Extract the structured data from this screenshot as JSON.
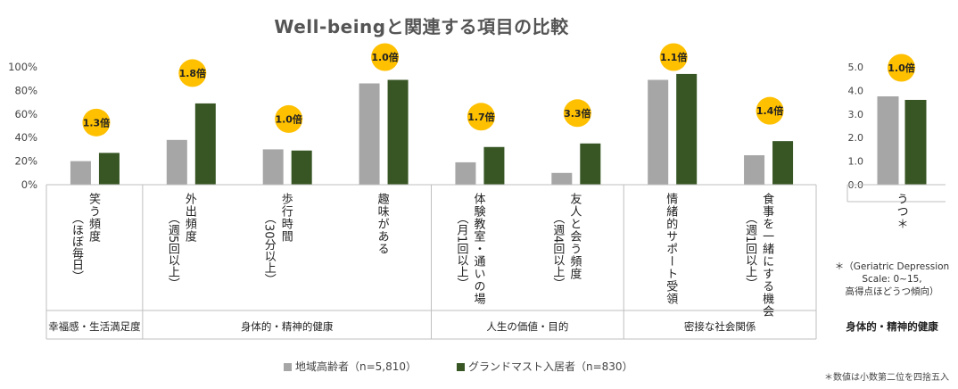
{
  "chart_data": [
    {
      "type": "bar",
      "title": "Well-beingと関連する項目の比較",
      "yticks": [
        "0%",
        "20%",
        "40%",
        "60%",
        "80%",
        "100%"
      ],
      "ylim": [
        0,
        100
      ],
      "series": [
        {
          "name": "地域高齢者（n=5,810）",
          "color": "#a6a6a6"
        },
        {
          "name": "グランドマスト入居者（n=830）",
          "color": "#375623"
        }
      ],
      "categories": [
        {
          "label": "笑う頻度",
          "sub": "（ほぼ毎日）",
          "values": [
            20,
            27
          ],
          "ratio": "1.3倍"
        },
        {
          "label": "外出頻度",
          "sub": "（週5回以上）",
          "values": [
            38,
            69
          ],
          "ratio": "1.8倍"
        },
        {
          "label": "歩行時間",
          "sub": "（30分以上）",
          "values": [
            30,
            29
          ],
          "ratio": "1.0倍"
        },
        {
          "label": "趣味がある",
          "sub": "",
          "values": [
            86,
            89
          ],
          "ratio": "1.0倍"
        },
        {
          "label": "体験教室・通いの場",
          "sub": "（月1回以上）",
          "values": [
            19,
            32
          ],
          "ratio": "1.7倍"
        },
        {
          "label": "友人と会う頻度",
          "sub": "（週4回以上）",
          "values": [
            10,
            35
          ],
          "ratio": "3.3倍"
        },
        {
          "label": "情緒的サポート受領",
          "sub": "",
          "values": [
            89,
            94
          ],
          "ratio": "1.1倍"
        },
        {
          "label": "食事を一緒にする機会",
          "sub": "（週1回以上）",
          "values": [
            25,
            37
          ],
          "ratio": "1.4倍"
        }
      ],
      "groups": [
        {
          "label": "幸福感・生活満足度"
        },
        {
          "label": "身体的・精神的健康"
        },
        {
          "label": "人生の価値・目的"
        },
        {
          "label": "密接な社会関係"
        }
      ],
      "grid": false,
      "legend_position": "bottom"
    },
    {
      "type": "bar",
      "yticks": [
        "0.0",
        "1.0",
        "2.0",
        "3.0",
        "4.0",
        "5.0"
      ],
      "ylim": [
        0,
        5
      ],
      "categories": [
        {
          "label": "うつ＊",
          "values": [
            3.75,
            3.6
          ],
          "ratio": "1.0倍"
        }
      ],
      "group_label": "身体的・精神的健康",
      "note": [
        "＊（Geriatric Depression",
        "Scale: 0~15,",
        "高得点ほどうつ傾向）"
      ]
    }
  ],
  "footnote": "＊数値は小数第二位を四捨五入"
}
